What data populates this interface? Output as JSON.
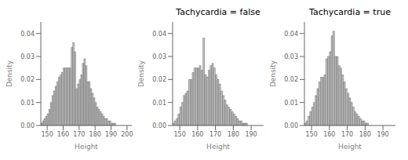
{
  "chart_data": [
    {
      "type": "histogram",
      "xlabel": "Height",
      "ylabel": "Density",
      "color": "#c8c8c8",
      "grid": false,
      "xlim": [
        146,
        203
      ],
      "xticks": [
        150,
        160,
        170,
        180,
        190,
        200
      ],
      "ylim": [
        0,
        0.045
      ],
      "yticks": [
        {
          "value": 0.0,
          "label": "0.00"
        },
        {
          "value": 0.01,
          "label": "0.01"
        },
        {
          "value": 0.02,
          "label": "0.02"
        },
        {
          "value": 0.03,
          "label": "0.03"
        },
        {
          "value": 0.04,
          "label": "0.04"
        }
      ],
      "bins": [
        146,
        147,
        148,
        149,
        150,
        151,
        152,
        153,
        154,
        155,
        156,
        157,
        158,
        159,
        160,
        161,
        162,
        163,
        164,
        165,
        166,
        167,
        168,
        169,
        170,
        171,
        172,
        173,
        174,
        175,
        176,
        177,
        178,
        179,
        180,
        181,
        182,
        183,
        184,
        185,
        186,
        187,
        188,
        189,
        190,
        191,
        192,
        193,
        194,
        195,
        196,
        197,
        198,
        199,
        200,
        201,
        202
      ],
      "values": [
        0.001,
        0.002,
        0.003,
        0.004,
        0.005,
        0.007,
        0.01,
        0.013,
        0.015,
        0.017,
        0.019,
        0.021,
        0.022,
        0.023,
        0.025,
        0.025,
        0.025,
        0.025,
        0.025,
        0.034,
        0.036,
        0.032,
        0.016,
        0.018,
        0.02,
        0.022,
        0.027,
        0.029,
        0.026,
        0.019,
        0.019,
        0.016,
        0.014,
        0.012,
        0.01,
        0.008,
        0.007,
        0.006,
        0.005,
        0.004,
        0.003,
        0.003,
        0.002,
        0.002,
        0.001,
        0.001,
        0.001,
        0.0,
        0.0,
        0.0,
        0.0,
        0.0,
        0.0,
        0.0,
        0.0,
        0.0
      ]
    },
    {
      "type": "histogram",
      "title": "Tachycardia = false",
      "xlabel": "Height",
      "ylabel": "Density",
      "color": "#c8c8c8",
      "grid": false,
      "xlim": [
        146,
        197
      ],
      "xticks": [
        150,
        160,
        170,
        180,
        190
      ],
      "ylim": [
        0,
        0.045
      ],
      "yticks": [
        {
          "value": 0.0,
          "label": "0.00"
        },
        {
          "value": 0.01,
          "label": "0.01"
        },
        {
          "value": 0.02,
          "label": "0.02"
        },
        {
          "value": 0.03,
          "label": "0.03"
        },
        {
          "value": 0.04,
          "label": "0.04"
        }
      ],
      "bins": [
        146,
        147,
        148,
        149,
        150,
        151,
        152,
        153,
        154,
        155,
        156,
        157,
        158,
        159,
        160,
        161,
        162,
        163,
        164,
        165,
        166,
        167,
        168,
        169,
        170,
        171,
        172,
        173,
        174,
        175,
        176,
        177,
        178,
        179,
        180,
        181,
        182,
        183,
        184,
        185,
        186,
        187,
        188,
        189,
        190,
        191,
        192,
        193,
        194,
        195,
        196
      ],
      "values": [
        0.001,
        0.002,
        0.003,
        0.005,
        0.008,
        0.01,
        0.013,
        0.014,
        0.015,
        0.02,
        0.02,
        0.023,
        0.025,
        0.025,
        0.025,
        0.026,
        0.024,
        0.038,
        0.022,
        0.021,
        0.024,
        0.026,
        0.027,
        0.025,
        0.022,
        0.02,
        0.018,
        0.015,
        0.013,
        0.011,
        0.009,
        0.008,
        0.007,
        0.006,
        0.005,
        0.004,
        0.003,
        0.002,
        0.002,
        0.001,
        0.001,
        0.001,
        0.0,
        0.0,
        0.0,
        0.0,
        0.0,
        0.0,
        0.0,
        0.0
      ]
    },
    {
      "type": "histogram",
      "title": "Tachycardia = true",
      "xlabel": "Height",
      "ylabel": "Density",
      "color": "#c8c8c8",
      "grid": false,
      "xlim": [
        146,
        197
      ],
      "xticks": [
        150,
        160,
        170,
        180,
        190
      ],
      "ylim": [
        0,
        0.045
      ],
      "yticks": [
        {
          "value": 0.0,
          "label": "0.00"
        },
        {
          "value": 0.01,
          "label": "0.01"
        },
        {
          "value": 0.02,
          "label": "0.02"
        },
        {
          "value": 0.03,
          "label": "0.03"
        },
        {
          "value": 0.04,
          "label": "0.04"
        }
      ],
      "bins": [
        146,
        147,
        148,
        149,
        150,
        151,
        152,
        153,
        154,
        155,
        156,
        157,
        158,
        159,
        160,
        161,
        162,
        163,
        164,
        165,
        166,
        167,
        168,
        169,
        170,
        171,
        172,
        173,
        174,
        175,
        176,
        177,
        178,
        179,
        180,
        181,
        182,
        183,
        184,
        185,
        186,
        187,
        188,
        189,
        190,
        191,
        192,
        193,
        194,
        195,
        196
      ],
      "values": [
        0.001,
        0.002,
        0.004,
        0.006,
        0.008,
        0.01,
        0.013,
        0.016,
        0.019,
        0.021,
        0.021,
        0.022,
        0.029,
        0.03,
        0.032,
        0.039,
        0.041,
        0.03,
        0.03,
        0.026,
        0.025,
        0.022,
        0.019,
        0.016,
        0.014,
        0.012,
        0.01,
        0.008,
        0.006,
        0.005,
        0.004,
        0.003,
        0.002,
        0.002,
        0.001,
        0.001,
        0.0,
        0.0,
        0.0,
        0.0,
        0.0,
        0.0,
        0.0,
        0.0,
        0.0,
        0.0,
        0.0,
        0.0,
        0.0,
        0.0
      ]
    }
  ]
}
